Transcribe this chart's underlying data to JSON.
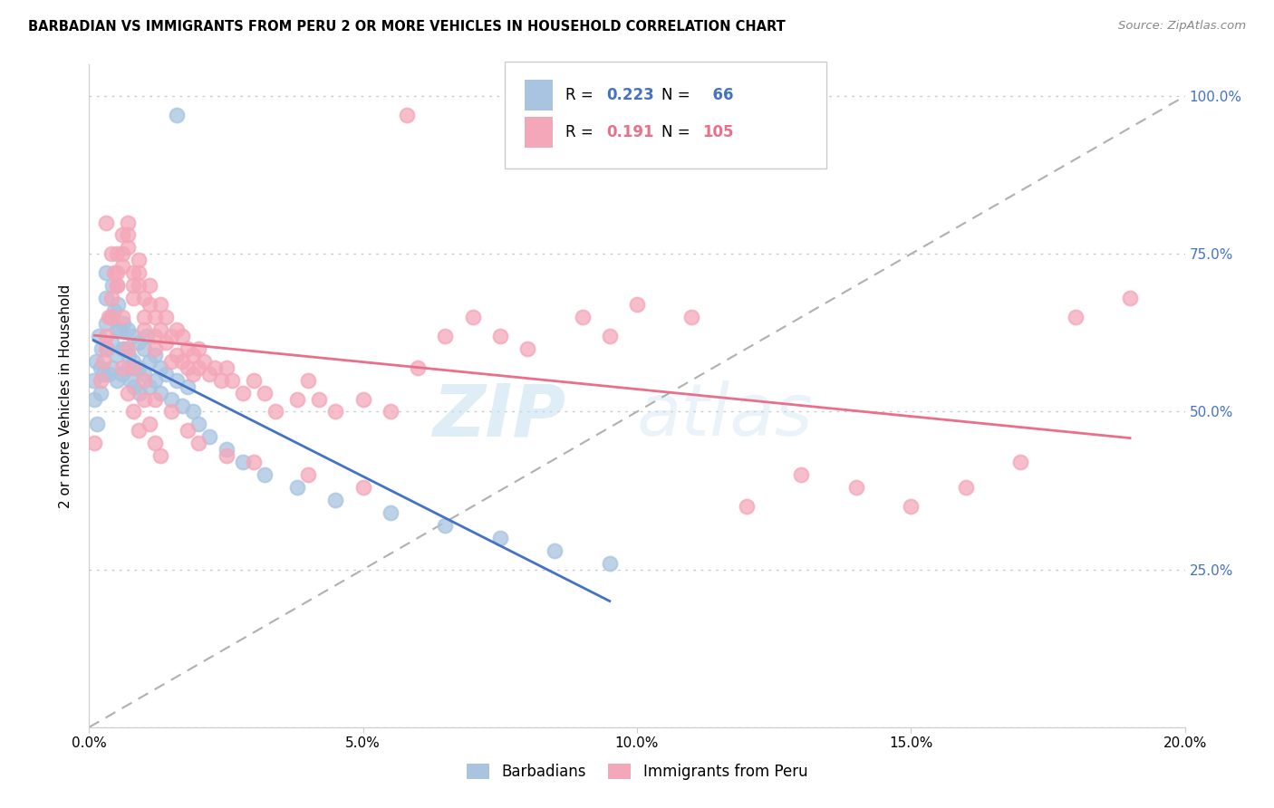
{
  "title": "BARBADIAN VS IMMIGRANTS FROM PERU 2 OR MORE VEHICLES IN HOUSEHOLD CORRELATION CHART",
  "source": "Source: ZipAtlas.com",
  "ylabel": "2 or more Vehicles in Household",
  "legend_labels": [
    "Barbadians",
    "Immigrants from Peru"
  ],
  "barbadian_color": "#a8c4e0",
  "peru_color": "#f4a7b9",
  "barbadian_line_color": "#4472c4",
  "peru_line_color": "#e8708a",
  "dashed_line_color": "#b0b0b0",
  "R_barbadian": 0.223,
  "N_barbadian": 66,
  "R_peru": 0.191,
  "N_peru": 105,
  "watermark": "ZIPatlas",
  "xlim": [
    0.0,
    0.2
  ],
  "ylim": [
    0.0,
    1.05
  ],
  "x_ticks": [
    0.0,
    0.05,
    0.1,
    0.15,
    0.2
  ],
  "x_tick_labels": [
    "0.0%",
    "5.0%",
    "10.0%",
    "15.0%",
    "20.0%"
  ],
  "y_ticks": [
    0.0,
    0.25,
    0.5,
    0.75,
    1.0
  ],
  "y_tick_labels_right": [
    "",
    "25.0%",
    "50.0%",
    "75.0%",
    "100.0%"
  ],
  "barbadian_x": [
    0.0008,
    0.001,
    0.0012,
    0.0015,
    0.0018,
    0.002,
    0.002,
    0.0022,
    0.0025,
    0.003,
    0.003,
    0.003,
    0.0032,
    0.0035,
    0.004,
    0.004,
    0.004,
    0.0042,
    0.0045,
    0.005,
    0.005,
    0.005,
    0.0052,
    0.0055,
    0.006,
    0.006,
    0.0062,
    0.0065,
    0.007,
    0.007,
    0.0072,
    0.0075,
    0.008,
    0.008,
    0.0082,
    0.009,
    0.009,
    0.0092,
    0.01,
    0.01,
    0.0105,
    0.011,
    0.011,
    0.012,
    0.012,
    0.013,
    0.013,
    0.014,
    0.015,
    0.016,
    0.017,
    0.018,
    0.019,
    0.02,
    0.022,
    0.025,
    0.028,
    0.032,
    0.038,
    0.045,
    0.055,
    0.065,
    0.075,
    0.085,
    0.095,
    0.016
  ],
  "barbadian_y": [
    0.55,
    0.52,
    0.58,
    0.48,
    0.62,
    0.57,
    0.53,
    0.6,
    0.56,
    0.72,
    0.68,
    0.64,
    0.6,
    0.56,
    0.65,
    0.61,
    0.57,
    0.7,
    0.66,
    0.63,
    0.59,
    0.55,
    0.67,
    0.63,
    0.6,
    0.56,
    0.64,
    0.6,
    0.57,
    0.63,
    0.59,
    0.55,
    0.62,
    0.58,
    0.54,
    0.61,
    0.57,
    0.53,
    0.6,
    0.56,
    0.62,
    0.58,
    0.54,
    0.59,
    0.55,
    0.57,
    0.53,
    0.56,
    0.52,
    0.55,
    0.51,
    0.54,
    0.5,
    0.48,
    0.46,
    0.44,
    0.42,
    0.4,
    0.38,
    0.36,
    0.34,
    0.32,
    0.3,
    0.28,
    0.26,
    0.97
  ],
  "peru_x": [
    0.001,
    0.002,
    0.0025,
    0.003,
    0.003,
    0.0035,
    0.004,
    0.004,
    0.0045,
    0.005,
    0.005,
    0.005,
    0.006,
    0.006,
    0.006,
    0.007,
    0.007,
    0.007,
    0.008,
    0.008,
    0.008,
    0.009,
    0.009,
    0.009,
    0.01,
    0.01,
    0.01,
    0.011,
    0.011,
    0.012,
    0.012,
    0.012,
    0.013,
    0.013,
    0.014,
    0.014,
    0.015,
    0.015,
    0.016,
    0.016,
    0.017,
    0.017,
    0.018,
    0.018,
    0.019,
    0.019,
    0.02,
    0.02,
    0.021,
    0.022,
    0.023,
    0.024,
    0.025,
    0.026,
    0.028,
    0.03,
    0.032,
    0.034,
    0.038,
    0.04,
    0.042,
    0.045,
    0.05,
    0.055,
    0.058,
    0.06,
    0.065,
    0.07,
    0.075,
    0.08,
    0.09,
    0.095,
    0.1,
    0.11,
    0.12,
    0.13,
    0.14,
    0.15,
    0.16,
    0.17,
    0.18,
    0.19,
    0.006,
    0.007,
    0.008,
    0.009,
    0.01,
    0.011,
    0.012,
    0.013,
    0.003,
    0.004,
    0.005,
    0.006,
    0.007,
    0.008,
    0.01,
    0.012,
    0.015,
    0.018,
    0.02,
    0.025,
    0.03,
    0.04,
    0.05
  ],
  "peru_y": [
    0.45,
    0.55,
    0.58,
    0.62,
    0.6,
    0.65,
    0.68,
    0.65,
    0.72,
    0.75,
    0.72,
    0.7,
    0.78,
    0.75,
    0.73,
    0.8,
    0.78,
    0.76,
    0.72,
    0.7,
    0.68,
    0.74,
    0.72,
    0.7,
    0.68,
    0.65,
    0.63,
    0.7,
    0.67,
    0.65,
    0.62,
    0.6,
    0.67,
    0.63,
    0.65,
    0.61,
    0.62,
    0.58,
    0.63,
    0.59,
    0.62,
    0.58,
    0.6,
    0.57,
    0.59,
    0.56,
    0.6,
    0.57,
    0.58,
    0.56,
    0.57,
    0.55,
    0.57,
    0.55,
    0.53,
    0.55,
    0.53,
    0.5,
    0.52,
    0.55,
    0.52,
    0.5,
    0.52,
    0.5,
    0.97,
    0.57,
    0.62,
    0.65,
    0.62,
    0.6,
    0.65,
    0.62,
    0.67,
    0.65,
    0.35,
    0.4,
    0.38,
    0.35,
    0.38,
    0.42,
    0.65,
    0.68,
    0.57,
    0.53,
    0.5,
    0.47,
    0.52,
    0.48,
    0.45,
    0.43,
    0.8,
    0.75,
    0.7,
    0.65,
    0.6,
    0.57,
    0.55,
    0.52,
    0.5,
    0.47,
    0.45,
    0.43,
    0.42,
    0.4,
    0.38
  ]
}
